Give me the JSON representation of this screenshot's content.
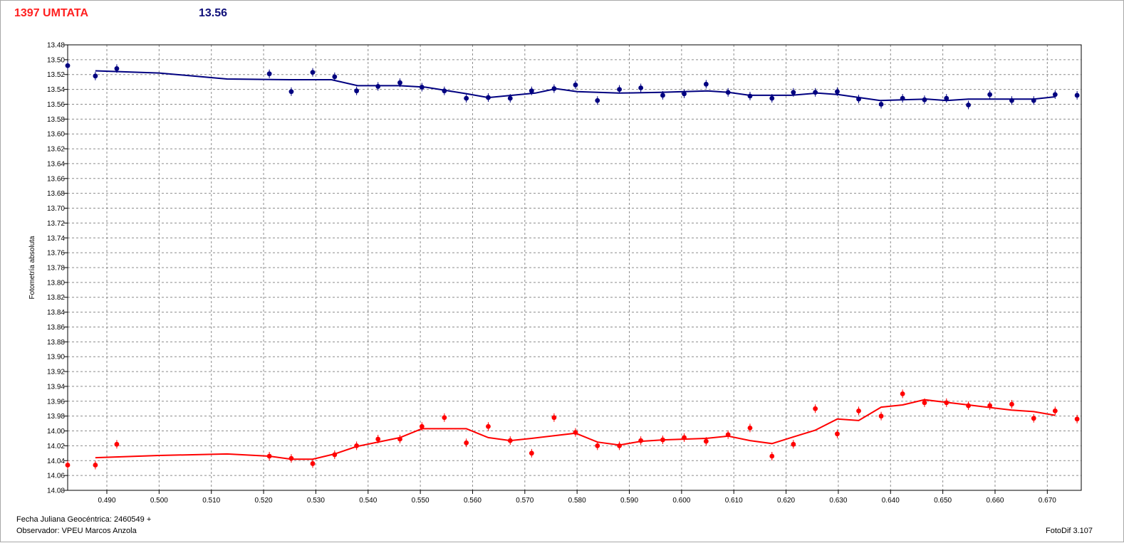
{
  "header": {
    "object_name": "1397 UMTATA",
    "magnitude": "13.56"
  },
  "footer": {
    "julian_date": "Fecha Juliana Geocéntrica: 2460549 +",
    "observer": "Observador: VPEU Marcos Anzola",
    "software": "FotoDif 3.107"
  },
  "colors": {
    "blue_series": "#000080",
    "red_series": "#ff0000",
    "grid": "#8c8c8c"
  },
  "chart_data": {
    "type": "scatter",
    "title": "",
    "xlabel": "",
    "ylabel": "Fotometría absoluta",
    "xlim": [
      0.4825,
      0.6765
    ],
    "ylim": [
      13.48,
      14.08
    ],
    "y_inverted": true,
    "grid": true,
    "x_ticks": [
      "0.490",
      "0.500",
      "0.510",
      "0.520",
      "0.530",
      "0.540",
      "0.550",
      "0.560",
      "0.570",
      "0.580",
      "0.590",
      "0.600",
      "0.610",
      "0.620",
      "0.630",
      "0.640",
      "0.650",
      "0.660",
      "0.670"
    ],
    "y_ticks": [
      "13.48",
      "13.50",
      "13.52",
      "13.54",
      "13.56",
      "13.58",
      "13.60",
      "13.62",
      "13.64",
      "13.66",
      "13.68",
      "13.70",
      "13.72",
      "13.74",
      "13.76",
      "13.78",
      "13.80",
      "13.82",
      "13.84",
      "13.86",
      "13.88",
      "13.90",
      "13.92",
      "13.94",
      "13.96",
      "13.98",
      "14.00",
      "14.02",
      "14.04",
      "14.06",
      "14.08"
    ],
    "series": [
      {
        "color": "#000080",
        "points": [
          [
            0.4825,
            13.508
          ],
          [
            0.4878,
            13.522
          ],
          [
            0.4919,
            13.512
          ],
          [
            0.5211,
            13.519
          ],
          [
            0.5253,
            13.543
          ],
          [
            0.5294,
            13.517
          ],
          [
            0.5336,
            13.523
          ],
          [
            0.5378,
            13.542
          ],
          [
            0.5419,
            13.536
          ],
          [
            0.5461,
            13.531
          ],
          [
            0.5503,
            13.537
          ],
          [
            0.5546,
            13.542
          ],
          [
            0.5588,
            13.552
          ],
          [
            0.563,
            13.551
          ],
          [
            0.5672,
            13.552
          ],
          [
            0.5713,
            13.542
          ],
          [
            0.5756,
            13.539
          ],
          [
            0.5797,
            13.534
          ],
          [
            0.5839,
            13.555
          ],
          [
            0.5881,
            13.54
          ],
          [
            0.5922,
            13.538
          ],
          [
            0.5964,
            13.548
          ],
          [
            0.6005,
            13.546
          ],
          [
            0.6047,
            13.533
          ],
          [
            0.6089,
            13.544
          ],
          [
            0.6131,
            13.549
          ],
          [
            0.6173,
            13.552
          ],
          [
            0.6214,
            13.544
          ],
          [
            0.6256,
            13.544
          ],
          [
            0.6298,
            13.543
          ],
          [
            0.6339,
            13.553
          ],
          [
            0.6382,
            13.56
          ],
          [
            0.6423,
            13.552
          ],
          [
            0.6465,
            13.554
          ],
          [
            0.6507,
            13.552
          ],
          [
            0.6549,
            13.561
          ],
          [
            0.659,
            13.547
          ],
          [
            0.6632,
            13.555
          ],
          [
            0.6674,
            13.555
          ],
          [
            0.6715,
            13.547
          ],
          [
            0.6757,
            13.548
          ]
        ],
        "fit": [
          [
            0.4878,
            13.515
          ],
          [
            0.5,
            13.518
          ],
          [
            0.513,
            13.526
          ],
          [
            0.525,
            13.527
          ],
          [
            0.533,
            13.527
          ],
          [
            0.538,
            13.535
          ],
          [
            0.546,
            13.535
          ],
          [
            0.551,
            13.537
          ],
          [
            0.559,
            13.546
          ],
          [
            0.563,
            13.551
          ],
          [
            0.572,
            13.545
          ],
          [
            0.576,
            13.539
          ],
          [
            0.58,
            13.543
          ],
          [
            0.588,
            13.545
          ],
          [
            0.596,
            13.544
          ],
          [
            0.605,
            13.542
          ],
          [
            0.609,
            13.544
          ],
          [
            0.613,
            13.548
          ],
          [
            0.621,
            13.548
          ],
          [
            0.626,
            13.545
          ],
          [
            0.63,
            13.547
          ],
          [
            0.638,
            13.555
          ],
          [
            0.647,
            13.553
          ],
          [
            0.6507,
            13.555
          ],
          [
            0.6549,
            13.553
          ],
          [
            0.6674,
            13.553
          ],
          [
            0.6715,
            13.55
          ]
        ]
      },
      {
        "color": "#ff0000",
        "points": [
          [
            0.4825,
            14.046
          ],
          [
            0.4878,
            14.046
          ],
          [
            0.4919,
            14.018
          ],
          [
            0.5211,
            14.034
          ],
          [
            0.5253,
            14.037
          ],
          [
            0.5294,
            14.044
          ],
          [
            0.5336,
            14.032
          ],
          [
            0.5378,
            14.02
          ],
          [
            0.5419,
            14.011
          ],
          [
            0.5461,
            14.011
          ],
          [
            0.5503,
            13.994
          ],
          [
            0.5546,
            13.982
          ],
          [
            0.5588,
            14.016
          ],
          [
            0.563,
            13.994
          ],
          [
            0.5672,
            14.013
          ],
          [
            0.5713,
            14.03
          ],
          [
            0.5756,
            13.982
          ],
          [
            0.5797,
            14.002
          ],
          [
            0.5839,
            14.02
          ],
          [
            0.5881,
            14.02
          ],
          [
            0.5922,
            14.013
          ],
          [
            0.5964,
            14.012
          ],
          [
            0.6005,
            14.009
          ],
          [
            0.6047,
            14.014
          ],
          [
            0.6089,
            14.005
          ],
          [
            0.6131,
            13.996
          ],
          [
            0.6173,
            14.034
          ],
          [
            0.6214,
            14.018
          ],
          [
            0.6256,
            13.97
          ],
          [
            0.6298,
            14.004
          ],
          [
            0.6339,
            13.973
          ],
          [
            0.6382,
            13.98
          ],
          [
            0.6423,
            13.95
          ],
          [
            0.6465,
            13.962
          ],
          [
            0.6507,
            13.962
          ],
          [
            0.6549,
            13.966
          ],
          [
            0.659,
            13.966
          ],
          [
            0.6632,
            13.964
          ],
          [
            0.6674,
            13.983
          ],
          [
            0.6715,
            13.973
          ],
          [
            0.6757,
            13.984
          ]
        ],
        "fit": [
          [
            0.4878,
            14.036
          ],
          [
            0.5,
            14.033
          ],
          [
            0.513,
            14.031
          ],
          [
            0.5211,
            14.034
          ],
          [
            0.5253,
            14.038
          ],
          [
            0.5294,
            14.038
          ],
          [
            0.5336,
            14.031
          ],
          [
            0.5378,
            14.021
          ],
          [
            0.5461,
            14.009
          ],
          [
            0.5503,
            13.997
          ],
          [
            0.5588,
            13.997
          ],
          [
            0.563,
            14.009
          ],
          [
            0.5672,
            14.013
          ],
          [
            0.5713,
            14.01
          ],
          [
            0.5797,
            14.003
          ],
          [
            0.5839,
            14.015
          ],
          [
            0.5881,
            14.019
          ],
          [
            0.5922,
            14.014
          ],
          [
            0.5964,
            14.012
          ],
          [
            0.6047,
            14.01
          ],
          [
            0.6089,
            14.007
          ],
          [
            0.6131,
            14.013
          ],
          [
            0.6173,
            14.017
          ],
          [
            0.6214,
            14.008
          ],
          [
            0.6256,
            13.999
          ],
          [
            0.6298,
            13.984
          ],
          [
            0.6339,
            13.986
          ],
          [
            0.6382,
            13.968
          ],
          [
            0.6423,
            13.965
          ],
          [
            0.6465,
            13.958
          ],
          [
            0.6549,
            13.965
          ],
          [
            0.6632,
            13.972
          ],
          [
            0.6674,
            13.974
          ],
          [
            0.6715,
            13.979
          ]
        ]
      }
    ]
  }
}
